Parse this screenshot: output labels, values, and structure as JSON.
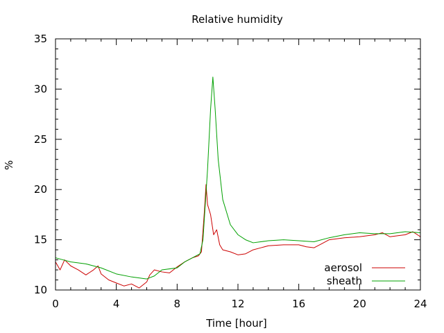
{
  "chart_data": {
    "type": "line",
    "title": "Relative humidity",
    "xlabel": "Time [hour]",
    "ylabel": "%",
    "xlim": [
      0,
      24
    ],
    "ylim": [
      10,
      35
    ],
    "xticks": [
      0,
      4,
      8,
      12,
      16,
      20,
      24
    ],
    "yticks": [
      10,
      15,
      20,
      25,
      30,
      35
    ],
    "x_tick_labels": [
      "0",
      "4",
      "8",
      "12",
      "16",
      "20",
      "24"
    ],
    "y_tick_labels": [
      "10",
      "15",
      "20",
      "25",
      "30",
      "35"
    ],
    "grid": false,
    "legend_position": "bottom-right",
    "series": [
      {
        "name": "aerosol",
        "color": "#cc0000",
        "x": [
          0,
          0.3,
          0.6,
          1.0,
          1.5,
          2.0,
          2.5,
          2.8,
          3.0,
          3.5,
          4.0,
          4.5,
          5.0,
          5.5,
          6.0,
          6.2,
          6.5,
          7.0,
          7.5,
          8.0,
          8.5,
          9.0,
          9.4,
          9.6,
          9.8,
          9.9,
          10.0,
          10.2,
          10.4,
          10.6,
          10.8,
          11.0,
          11.5,
          12.0,
          12.5,
          13.0,
          13.5,
          14.0,
          15.0,
          16.0,
          16.5,
          17.0,
          17.5,
          18.0,
          19.0,
          20.0,
          21.0,
          21.5,
          22.0,
          23.0,
          23.5,
          24.0
        ],
        "y": [
          12.8,
          12.0,
          13.0,
          12.4,
          12.0,
          11.5,
          12.0,
          12.4,
          11.6,
          11.0,
          10.7,
          10.4,
          10.6,
          10.2,
          10.8,
          11.5,
          12.0,
          11.8,
          11.7,
          12.3,
          12.8,
          13.2,
          13.4,
          13.8,
          18.0,
          20.5,
          18.5,
          17.5,
          15.5,
          16.0,
          14.5,
          14.0,
          13.8,
          13.5,
          13.6,
          14.0,
          14.2,
          14.4,
          14.5,
          14.5,
          14.3,
          14.2,
          14.6,
          15.0,
          15.2,
          15.3,
          15.5,
          15.7,
          15.3,
          15.5,
          15.8,
          15.3
        ]
      },
      {
        "name": "sheath",
        "color": "#00a000",
        "x": [
          0,
          0.5,
          1.0,
          2.0,
          3.0,
          4.0,
          5.0,
          6.0,
          6.5,
          7.0,
          8.0,
          8.5,
          9.0,
          9.5,
          9.7,
          10.0,
          10.2,
          10.35,
          10.5,
          10.7,
          11.0,
          11.5,
          12.0,
          12.5,
          13.0,
          14.0,
          15.0,
          16.0,
          17.0,
          18.0,
          19.0,
          20.0,
          21.0,
          22.0,
          23.0,
          24.0
        ],
        "y": [
          13.2,
          13.0,
          12.8,
          12.6,
          12.2,
          11.6,
          11.3,
          11.1,
          11.4,
          12.0,
          12.2,
          12.8,
          13.2,
          13.6,
          15.0,
          22.0,
          28.0,
          31.2,
          28.0,
          23.0,
          19.0,
          16.5,
          15.5,
          15.0,
          14.7,
          14.9,
          15.0,
          14.9,
          14.8,
          15.2,
          15.5,
          15.7,
          15.6,
          15.6,
          15.8,
          15.7
        ]
      }
    ]
  }
}
